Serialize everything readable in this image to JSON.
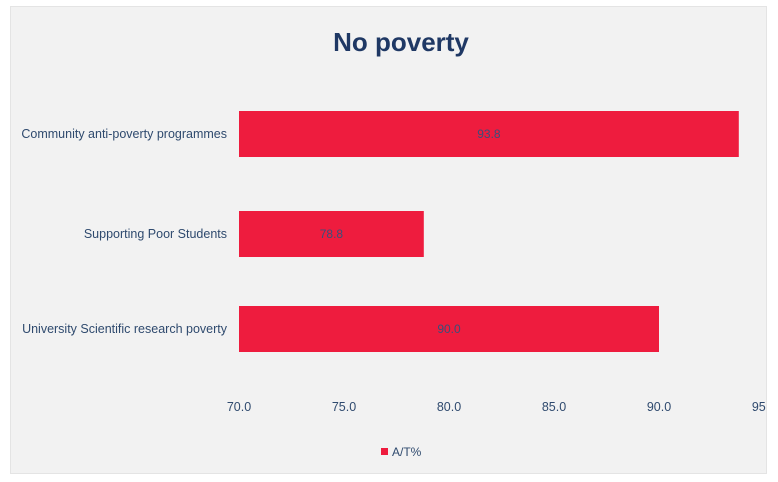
{
  "chart_data": {
    "type": "bar",
    "orientation": "horizontal",
    "title": "No poverty",
    "categories": [
      "Community anti-poverty programmes",
      "Supporting Poor Students",
      "University Scientific research poverty"
    ],
    "series": [
      {
        "name": "A/T%",
        "values": [
          93.8,
          78.8,
          90.0
        ],
        "labels": [
          "93.8",
          "78.8",
          "90.0"
        ],
        "color": "#ee1c3e"
      }
    ],
    "xlim": [
      70,
      95
    ],
    "ticks": [
      "70.0",
      "75.0",
      "80.0",
      "85.0",
      "90.0",
      "95.0"
    ],
    "grid": false,
    "legend_position": "bottom"
  }
}
